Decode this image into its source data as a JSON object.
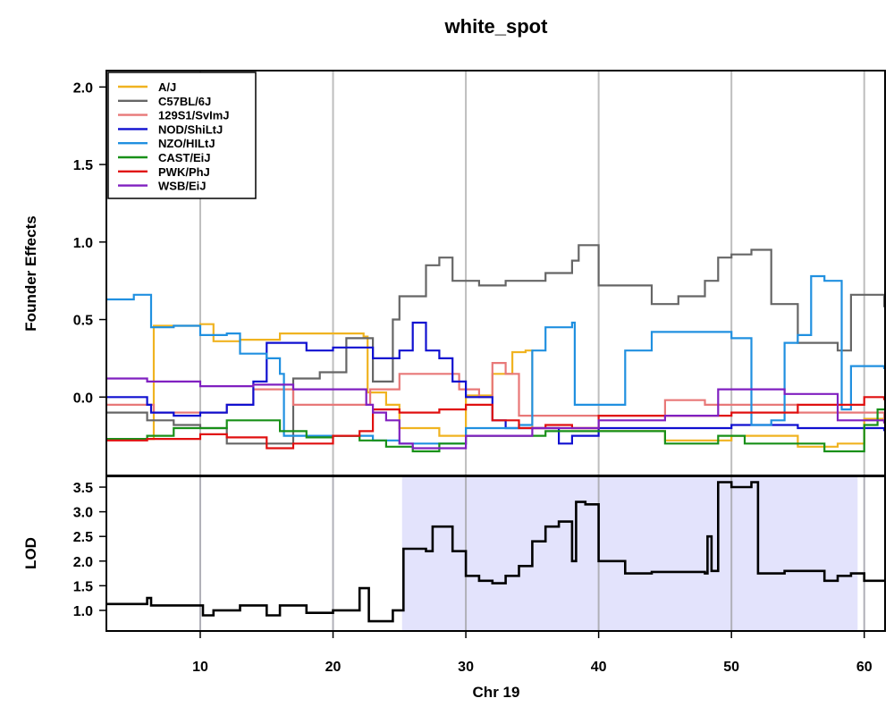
{
  "chart_data": [
    {
      "type": "line",
      "title": "white_spot",
      "xlabel": "Chr 19",
      "ylabel": "Founder Effects",
      "xlim": [
        3,
        61.5
      ],
      "ylim": [
        -0.5,
        2.1
      ],
      "x_ticks": [
        "10",
        "20",
        "30",
        "40",
        "50",
        "60"
      ],
      "y_ticks": [
        "0.0",
        "0.5",
        "1.0",
        "1.5",
        "2.0"
      ],
      "vertical_grid_at": [
        10,
        20,
        30,
        40,
        50,
        60
      ],
      "legend_placement": "top-left",
      "series": [
        {
          "name": "A/J",
          "color": "#F0B320",
          "x": [
            3,
            6.3,
            6.5,
            10,
            11,
            13,
            16,
            22.3,
            22.6,
            24,
            25,
            28,
            30,
            32,
            33.5,
            34.5,
            35,
            40,
            45,
            50,
            55,
            58,
            60,
            61.5
          ],
          "y": [
            -0.27,
            -0.27,
            0.46,
            0.47,
            0.36,
            0.37,
            0.41,
            0.39,
            0.03,
            -0.05,
            -0.2,
            -0.25,
            0.01,
            0.15,
            0.29,
            0.3,
            -0.2,
            -0.22,
            -0.28,
            -0.25,
            -0.32,
            -0.3,
            -0.14,
            -0.17
          ]
        },
        {
          "name": "C57BL/6J",
          "color": "#666666",
          "x": [
            3,
            6,
            8,
            10,
            12,
            15,
            17,
            19,
            21,
            22.5,
            23,
            24.5,
            25,
            27,
            28,
            29,
            31,
            33,
            36,
            38,
            38.5,
            40,
            44,
            46,
            48,
            49,
            50,
            51.5,
            53,
            55,
            58,
            59,
            61.5
          ],
          "y": [
            -0.1,
            -0.15,
            -0.18,
            -0.2,
            -0.3,
            -0.3,
            0.12,
            0.16,
            0.38,
            0.38,
            0.1,
            0.5,
            0.65,
            0.85,
            0.9,
            0.75,
            0.72,
            0.75,
            0.8,
            0.88,
            0.98,
            0.72,
            0.6,
            0.65,
            0.75,
            0.9,
            0.92,
            0.95,
            0.6,
            0.35,
            0.3,
            0.66,
            0.58
          ]
        },
        {
          "name": "129S1/SvImJ",
          "color": "#E87878",
          "x": [
            3,
            6.3,
            6.5,
            10,
            12,
            14,
            16,
            17,
            20,
            22.5,
            22.8,
            25,
            28,
            29.5,
            31,
            32,
            33,
            34,
            35,
            40,
            45,
            48,
            50,
            55,
            58,
            61.5
          ],
          "y": [
            -0.05,
            -0.05,
            -0.1,
            -0.1,
            -0.05,
            0.05,
            0.05,
            -0.05,
            -0.05,
            -0.05,
            0.05,
            0.15,
            0.15,
            0.05,
            0.0,
            0.22,
            0.15,
            -0.12,
            -0.12,
            -0.12,
            -0.02,
            -0.05,
            -0.05,
            -0.1,
            -0.1,
            -0.15
          ]
        },
        {
          "name": "NOD/ShiLtJ",
          "color": "#1010D0",
          "x": [
            3,
            6,
            6.3,
            8,
            10,
            12,
            13,
            14,
            15,
            18,
            20,
            22.5,
            23,
            25,
            26,
            27,
            28,
            29,
            30,
            32,
            33,
            35,
            37,
            38,
            40,
            45,
            50,
            55,
            58,
            61.5
          ],
          "y": [
            0.0,
            -0.05,
            -0.1,
            -0.12,
            -0.1,
            -0.05,
            -0.05,
            0.1,
            0.35,
            0.3,
            0.32,
            0.32,
            0.25,
            0.3,
            0.48,
            0.3,
            0.25,
            0.1,
            0.0,
            -0.15,
            -0.2,
            -0.2,
            -0.3,
            -0.25,
            -0.2,
            -0.2,
            -0.18,
            -0.2,
            -0.2,
            -0.22
          ]
        },
        {
          "name": "NZO/HILtJ",
          "color": "#2090E0",
          "x": [
            3,
            5,
            6,
            6.3,
            8,
            10,
            12,
            13,
            15,
            16,
            16.3,
            17,
            20,
            22,
            23,
            25,
            30,
            34,
            35,
            36,
            38,
            38.2,
            40,
            42,
            44,
            50,
            51.5,
            53,
            54,
            55,
            56,
            57,
            58.3,
            59,
            61.5
          ],
          "y": [
            0.63,
            0.66,
            0.66,
            0.45,
            0.46,
            0.4,
            0.41,
            0.28,
            0.25,
            0.15,
            -0.25,
            -0.25,
            -0.25,
            -0.25,
            -0.28,
            -0.3,
            -0.2,
            -0.18,
            0.3,
            0.45,
            0.48,
            -0.05,
            -0.05,
            0.3,
            0.42,
            0.38,
            -0.18,
            -0.15,
            0.35,
            0.4,
            0.78,
            0.75,
            -0.08,
            0.2,
            0.18
          ]
        },
        {
          "name": "CAST/EiJ",
          "color": "#189018",
          "x": [
            3,
            6,
            8,
            10,
            12,
            15,
            16,
            18,
            20,
            22,
            24,
            26,
            28,
            30,
            34,
            36,
            40,
            45,
            49,
            51,
            53,
            55,
            57,
            60,
            61,
            61.5
          ],
          "y": [
            -0.27,
            -0.25,
            -0.2,
            -0.2,
            -0.15,
            -0.15,
            -0.22,
            -0.26,
            -0.25,
            -0.28,
            -0.32,
            -0.35,
            -0.3,
            -0.25,
            -0.25,
            -0.22,
            -0.22,
            -0.3,
            -0.25,
            -0.3,
            -0.3,
            -0.3,
            -0.35,
            -0.18,
            -0.08,
            -0.08
          ]
        },
        {
          "name": "PWK/PhJ",
          "color": "#E01010",
          "x": [
            3,
            6,
            10,
            12,
            15,
            17,
            20,
            22,
            23,
            25,
            28,
            30,
            32,
            34,
            36,
            38,
            40,
            45,
            50,
            55,
            58,
            60,
            61.5
          ],
          "y": [
            -0.28,
            -0.27,
            -0.24,
            -0.26,
            -0.33,
            -0.3,
            -0.25,
            -0.22,
            -0.08,
            -0.1,
            -0.08,
            -0.05,
            -0.15,
            -0.2,
            -0.18,
            -0.2,
            -0.12,
            -0.12,
            -0.1,
            -0.05,
            -0.05,
            0.0,
            -0.02
          ]
        },
        {
          "name": "WSB/EiJ",
          "color": "#8020C0",
          "x": [
            3,
            6,
            10,
            12,
            14,
            15,
            17,
            20,
            22.5,
            23,
            24,
            25,
            26,
            28,
            30,
            35,
            40,
            45,
            48,
            49,
            52,
            54,
            55,
            58,
            61.5
          ],
          "y": [
            0.12,
            0.1,
            0.07,
            0.07,
            0.08,
            0.08,
            0.05,
            0.05,
            -0.05,
            -0.1,
            -0.15,
            -0.3,
            -0.33,
            -0.33,
            -0.25,
            -0.2,
            -0.15,
            -0.12,
            -0.12,
            0.05,
            0.05,
            0.02,
            0.02,
            -0.15,
            -0.17
          ]
        }
      ]
    },
    {
      "type": "line",
      "title": "",
      "xlabel": "Chr 19",
      "ylabel": "LOD",
      "xlim": [
        3,
        61.5
      ],
      "ylim": [
        0.6,
        3.7
      ],
      "x_ticks": [
        "10",
        "20",
        "30",
        "40",
        "50",
        "60"
      ],
      "y_ticks": [
        "1.0",
        "1.5",
        "2.0",
        "2.5",
        "3.0",
        "3.5"
      ],
      "shaded_interval": [
        25.2,
        59.5
      ],
      "series": [
        {
          "name": "",
          "color": "#000000",
          "x": [
            3,
            6,
            6.3,
            7,
            10,
            10.2,
            11,
            13,
            15,
            16,
            17,
            18,
            20,
            21,
            22,
            22.5,
            22.7,
            24,
            24.5,
            25,
            25.3,
            26,
            27,
            27.5,
            28,
            29,
            30,
            31,
            32,
            33,
            34,
            35,
            36,
            37,
            37.5,
            38,
            38.3,
            39,
            40,
            42,
            44,
            46,
            48,
            48.2,
            48.5,
            49,
            50,
            51.5,
            52,
            53,
            54,
            56,
            57,
            58,
            59,
            60,
            61.5
          ],
          "y": [
            1.13,
            1.25,
            1.1,
            1.1,
            1.1,
            0.9,
            1.0,
            1.1,
            0.9,
            1.1,
            1.1,
            0.95,
            1.0,
            1.0,
            1.45,
            1.45,
            0.78,
            0.78,
            1.0,
            1.0,
            2.25,
            2.25,
            2.2,
            2.7,
            2.7,
            2.2,
            1.7,
            1.6,
            1.55,
            1.7,
            1.9,
            2.4,
            2.7,
            2.8,
            2.8,
            2.0,
            3.2,
            3.15,
            2.0,
            1.75,
            1.78,
            1.78,
            1.75,
            2.5,
            1.8,
            3.6,
            3.5,
            3.6,
            1.75,
            1.75,
            1.8,
            1.8,
            1.6,
            1.7,
            1.75,
            1.6,
            1.6
          ]
        }
      ]
    }
  ]
}
